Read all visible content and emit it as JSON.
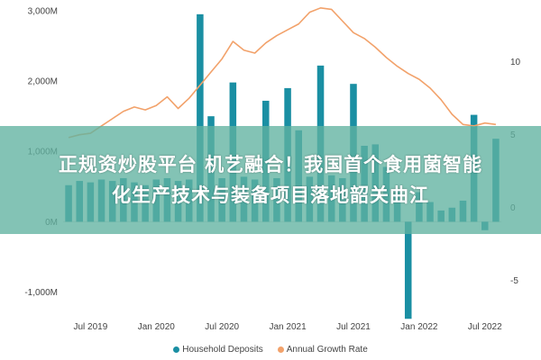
{
  "chart_data": {
    "type": "bar",
    "title": "",
    "x_ticks": [
      "Jul 2019",
      "Jan 2020",
      "Jul 2020",
      "Jan 2021",
      "Jul 2021",
      "Jan 2022",
      "Jul 2022"
    ],
    "x_tick_index": [
      2,
      8,
      14,
      20,
      26,
      32,
      38
    ],
    "y_left": {
      "ticks": [
        "3,000M",
        "2,000M",
        "1,000M",
        "0M",
        "-1,000M"
      ],
      "tick_values": [
        3000,
        2000,
        1000,
        0,
        -1000
      ],
      "range": [
        -1300,
        3050
      ]
    },
    "y_right": {
      "ticks": [
        "10",
        "5",
        "0",
        "-5"
      ],
      "tick_values": [
        10,
        5,
        0,
        -5
      ],
      "range": [
        -7.25,
        13.75
      ]
    },
    "series": [
      {
        "name": "Household Deposits",
        "axis": "left",
        "type": "bar",
        "color": "#1a8fa3",
        "values": [
          520,
          580,
          560,
          600,
          580,
          620,
          560,
          520,
          600,
          620,
          580,
          600,
          2950,
          1500,
          620,
          1980,
          640,
          600,
          1720,
          620,
          1900,
          1300,
          640,
          2220,
          660,
          620,
          1960,
          1080,
          1100,
          780,
          460,
          -1380,
          420,
          280,
          160,
          200,
          300,
          1520,
          -120,
          1180
        ]
      },
      {
        "name": "Annual Growth Rate",
        "axis": "right",
        "type": "line",
        "color": "#f2a26b",
        "values": [
          4.8,
          5.0,
          5.1,
          5.6,
          6.1,
          6.6,
          6.9,
          6.7,
          7.0,
          7.6,
          6.8,
          7.5,
          8.4,
          9.3,
          10.2,
          11.4,
          10.8,
          10.6,
          11.3,
          11.8,
          12.2,
          12.6,
          13.4,
          13.7,
          13.6,
          12.8,
          12.0,
          11.6,
          11.0,
          10.3,
          9.7,
          9.2,
          8.8,
          8.2,
          7.4,
          6.4,
          5.7,
          5.6,
          5.8,
          5.7
        ]
      }
    ],
    "legend_position": "bottom",
    "grid": false
  },
  "banner": {
    "line1": "正规资炒股平台 机艺融合！我国首个食用菌智能",
    "line2": "化生产技术与装备项目落地韶关曲江"
  }
}
